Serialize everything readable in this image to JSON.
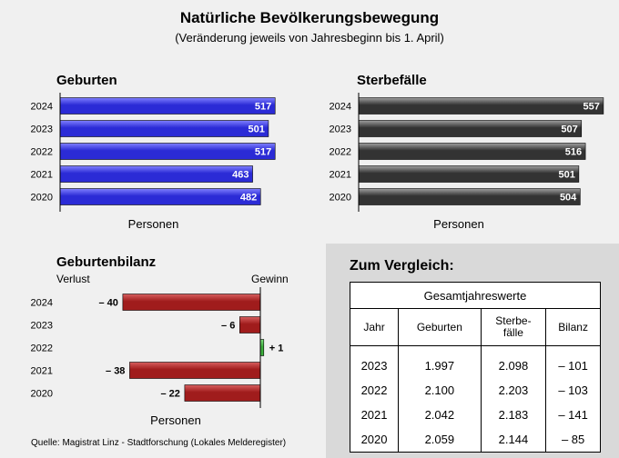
{
  "header": {
    "title": "Natürliche Bevölkerungsbewegung",
    "subtitle": "(Veränderung jeweils von Jahresbeginn bis 1. April)"
  },
  "chart_data": [
    {
      "type": "bar",
      "orientation": "horizontal",
      "title": "Geburten",
      "xlabel": "Personen",
      "categories": [
        "2024",
        "2023",
        "2022",
        "2021",
        "2020"
      ],
      "values": [
        517,
        501,
        517,
        463,
        482
      ],
      "labels": [
        "517",
        "501",
        "517",
        "463",
        "482"
      ],
      "xlim": [
        0,
        580
      ],
      "color": "#2b2bd6"
    },
    {
      "type": "bar",
      "orientation": "horizontal",
      "title": "Sterbefälle",
      "xlabel": "Personen",
      "categories": [
        "2024",
        "2023",
        "2022",
        "2021",
        "2020"
      ],
      "values": [
        557,
        507,
        516,
        501,
        504
      ],
      "labels": [
        "557",
        "507",
        "516",
        "501",
        "504"
      ],
      "xlim": [
        0,
        580
      ],
      "color": "#333333"
    },
    {
      "type": "bar",
      "orientation": "horizontal",
      "title": "Geburtenbilanz",
      "xlabel": "Personen",
      "left_label": "Verlust",
      "right_label": "Gewinn",
      "categories": [
        "2024",
        "2023",
        "2022",
        "2021",
        "2020"
      ],
      "values": [
        -40,
        -6,
        1,
        -38,
        -22
      ],
      "labels": [
        "– 40",
        "– 6",
        "+ 1",
        "– 38",
        "– 22"
      ],
      "xlim": [
        -45,
        0
      ],
      "negative_color": "#a01c1c",
      "positive_color": "#3cae3c"
    }
  ],
  "comparison": {
    "title": "Zum Vergleich:",
    "table_caption": "Gesamtjahreswerte",
    "columns": [
      "Jahr",
      "Geburten",
      "Sterbe-\nfälle",
      "Bilanz"
    ],
    "rows": [
      [
        "2023",
        "1.997",
        "2.098",
        "– 101"
      ],
      [
        "2022",
        "2.100",
        "2.203",
        "– 103"
      ],
      [
        "2021",
        "2.042",
        "2.183",
        "– 141"
      ],
      [
        "2020",
        "2.059",
        "2.144",
        "– 85"
      ]
    ]
  },
  "footer": {
    "source": "Quelle: Magistrat Linz - Stadtforschung (Lokales Melderegister)"
  }
}
